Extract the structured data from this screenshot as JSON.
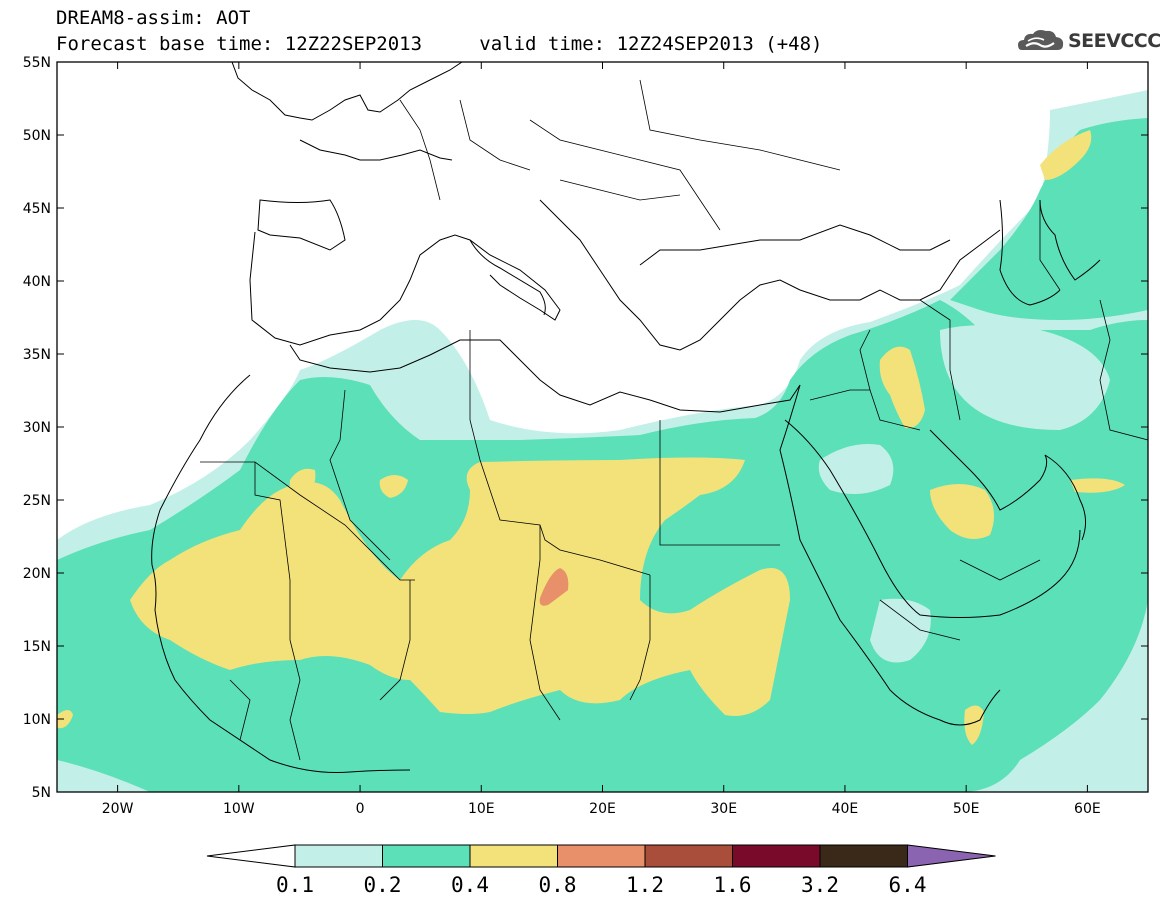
{
  "header": {
    "title": "DREAM8-assim: AOT",
    "base_label": "Forecast base time:",
    "base_time": "12Z22SEP2013",
    "valid_label": "valid time:",
    "valid_time": "12Z24SEP2013 (+48)"
  },
  "logo": {
    "text": "SEEVCCC",
    "icon": "cloud-icon"
  },
  "map": {
    "lon_range": [
      -25,
      65
    ],
    "lat_range": [
      5,
      55
    ],
    "lat_ticks": [
      "55N",
      "50N",
      "45N",
      "40N",
      "35N",
      "30N",
      "25N",
      "20N",
      "15N",
      "10N",
      "5N"
    ],
    "lon_ticks": [
      "20W",
      "10W",
      "0",
      "10E",
      "20E",
      "30E",
      "40E",
      "50E",
      "60E"
    ]
  },
  "colorbar": {
    "labels": [
      "0.1",
      "0.2",
      "0.4",
      "0.8",
      "1.2",
      "1.6",
      "3.2",
      "6.4"
    ],
    "colors": [
      "#ffffff",
      "#c2f0e8",
      "#5ce0b8",
      "#f3e27a",
      "#e8906a",
      "#a84e3a",
      "#7a0a2a",
      "#3a2818",
      "#8a64b0"
    ]
  }
}
